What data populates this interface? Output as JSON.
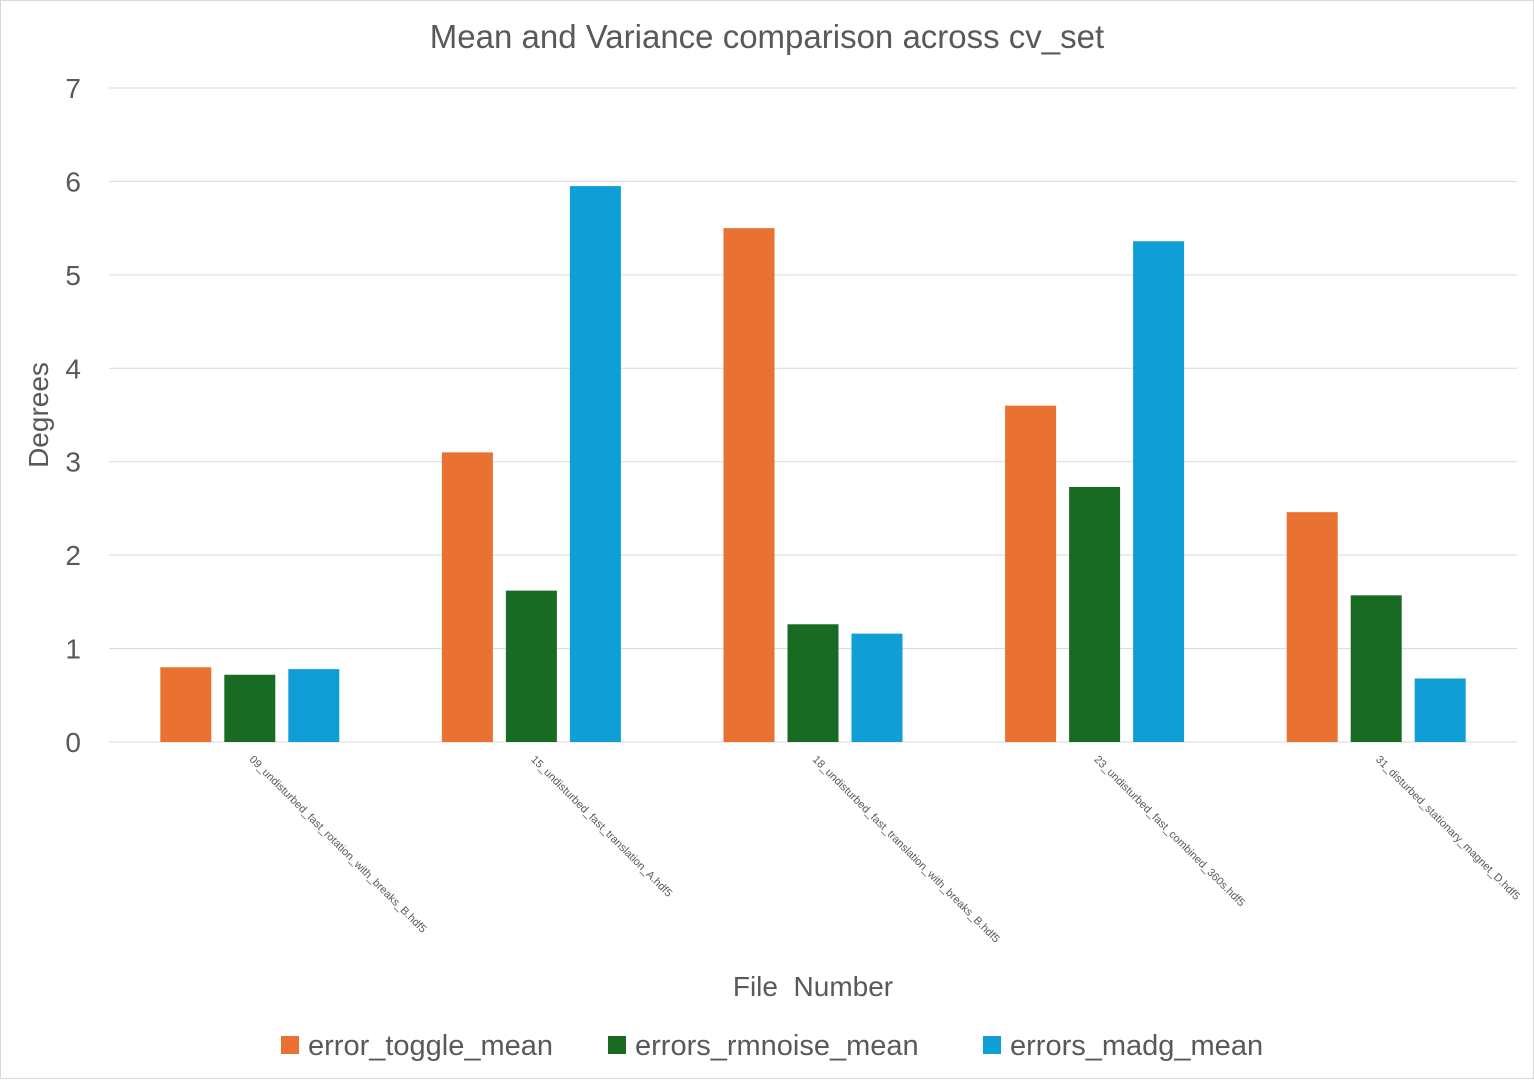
{
  "chart_data": {
    "type": "bar",
    "title": "Mean and Variance comparison across cv_set",
    "xlabel": "File  Number",
    "ylabel": "Degrees",
    "ylim": [
      0,
      7
    ],
    "yticks": [
      0,
      1,
      2,
      3,
      4,
      5,
      6,
      7
    ],
    "grid": "horizontal",
    "legend_position": "bottom",
    "categories": [
      "09_undisturbed_fast_rotation_with_breaks_B.hdf5",
      "15_undisturbed_fast_translation_A.hdf5",
      "18_undisturbed_fast_translation_with_breaks_B.hdf5",
      "23_undisturbed_fast_combined_360s.hdf5",
      "31_disturbed_stationary_magnet_D.hdf5"
    ],
    "series": [
      {
        "name": "error_toggle_mean",
        "color": "#E97132",
        "values": [
          0.8,
          3.1,
          5.5,
          3.6,
          2.46
        ]
      },
      {
        "name": "errors_rmnoise_mean",
        "color": "#196B24",
        "values": [
          0.72,
          1.62,
          1.26,
          2.73,
          1.57
        ]
      },
      {
        "name": "errors_madg_mean",
        "color": "#0F9ED5",
        "values": [
          0.78,
          5.95,
          1.16,
          5.36,
          0.68
        ]
      }
    ]
  }
}
